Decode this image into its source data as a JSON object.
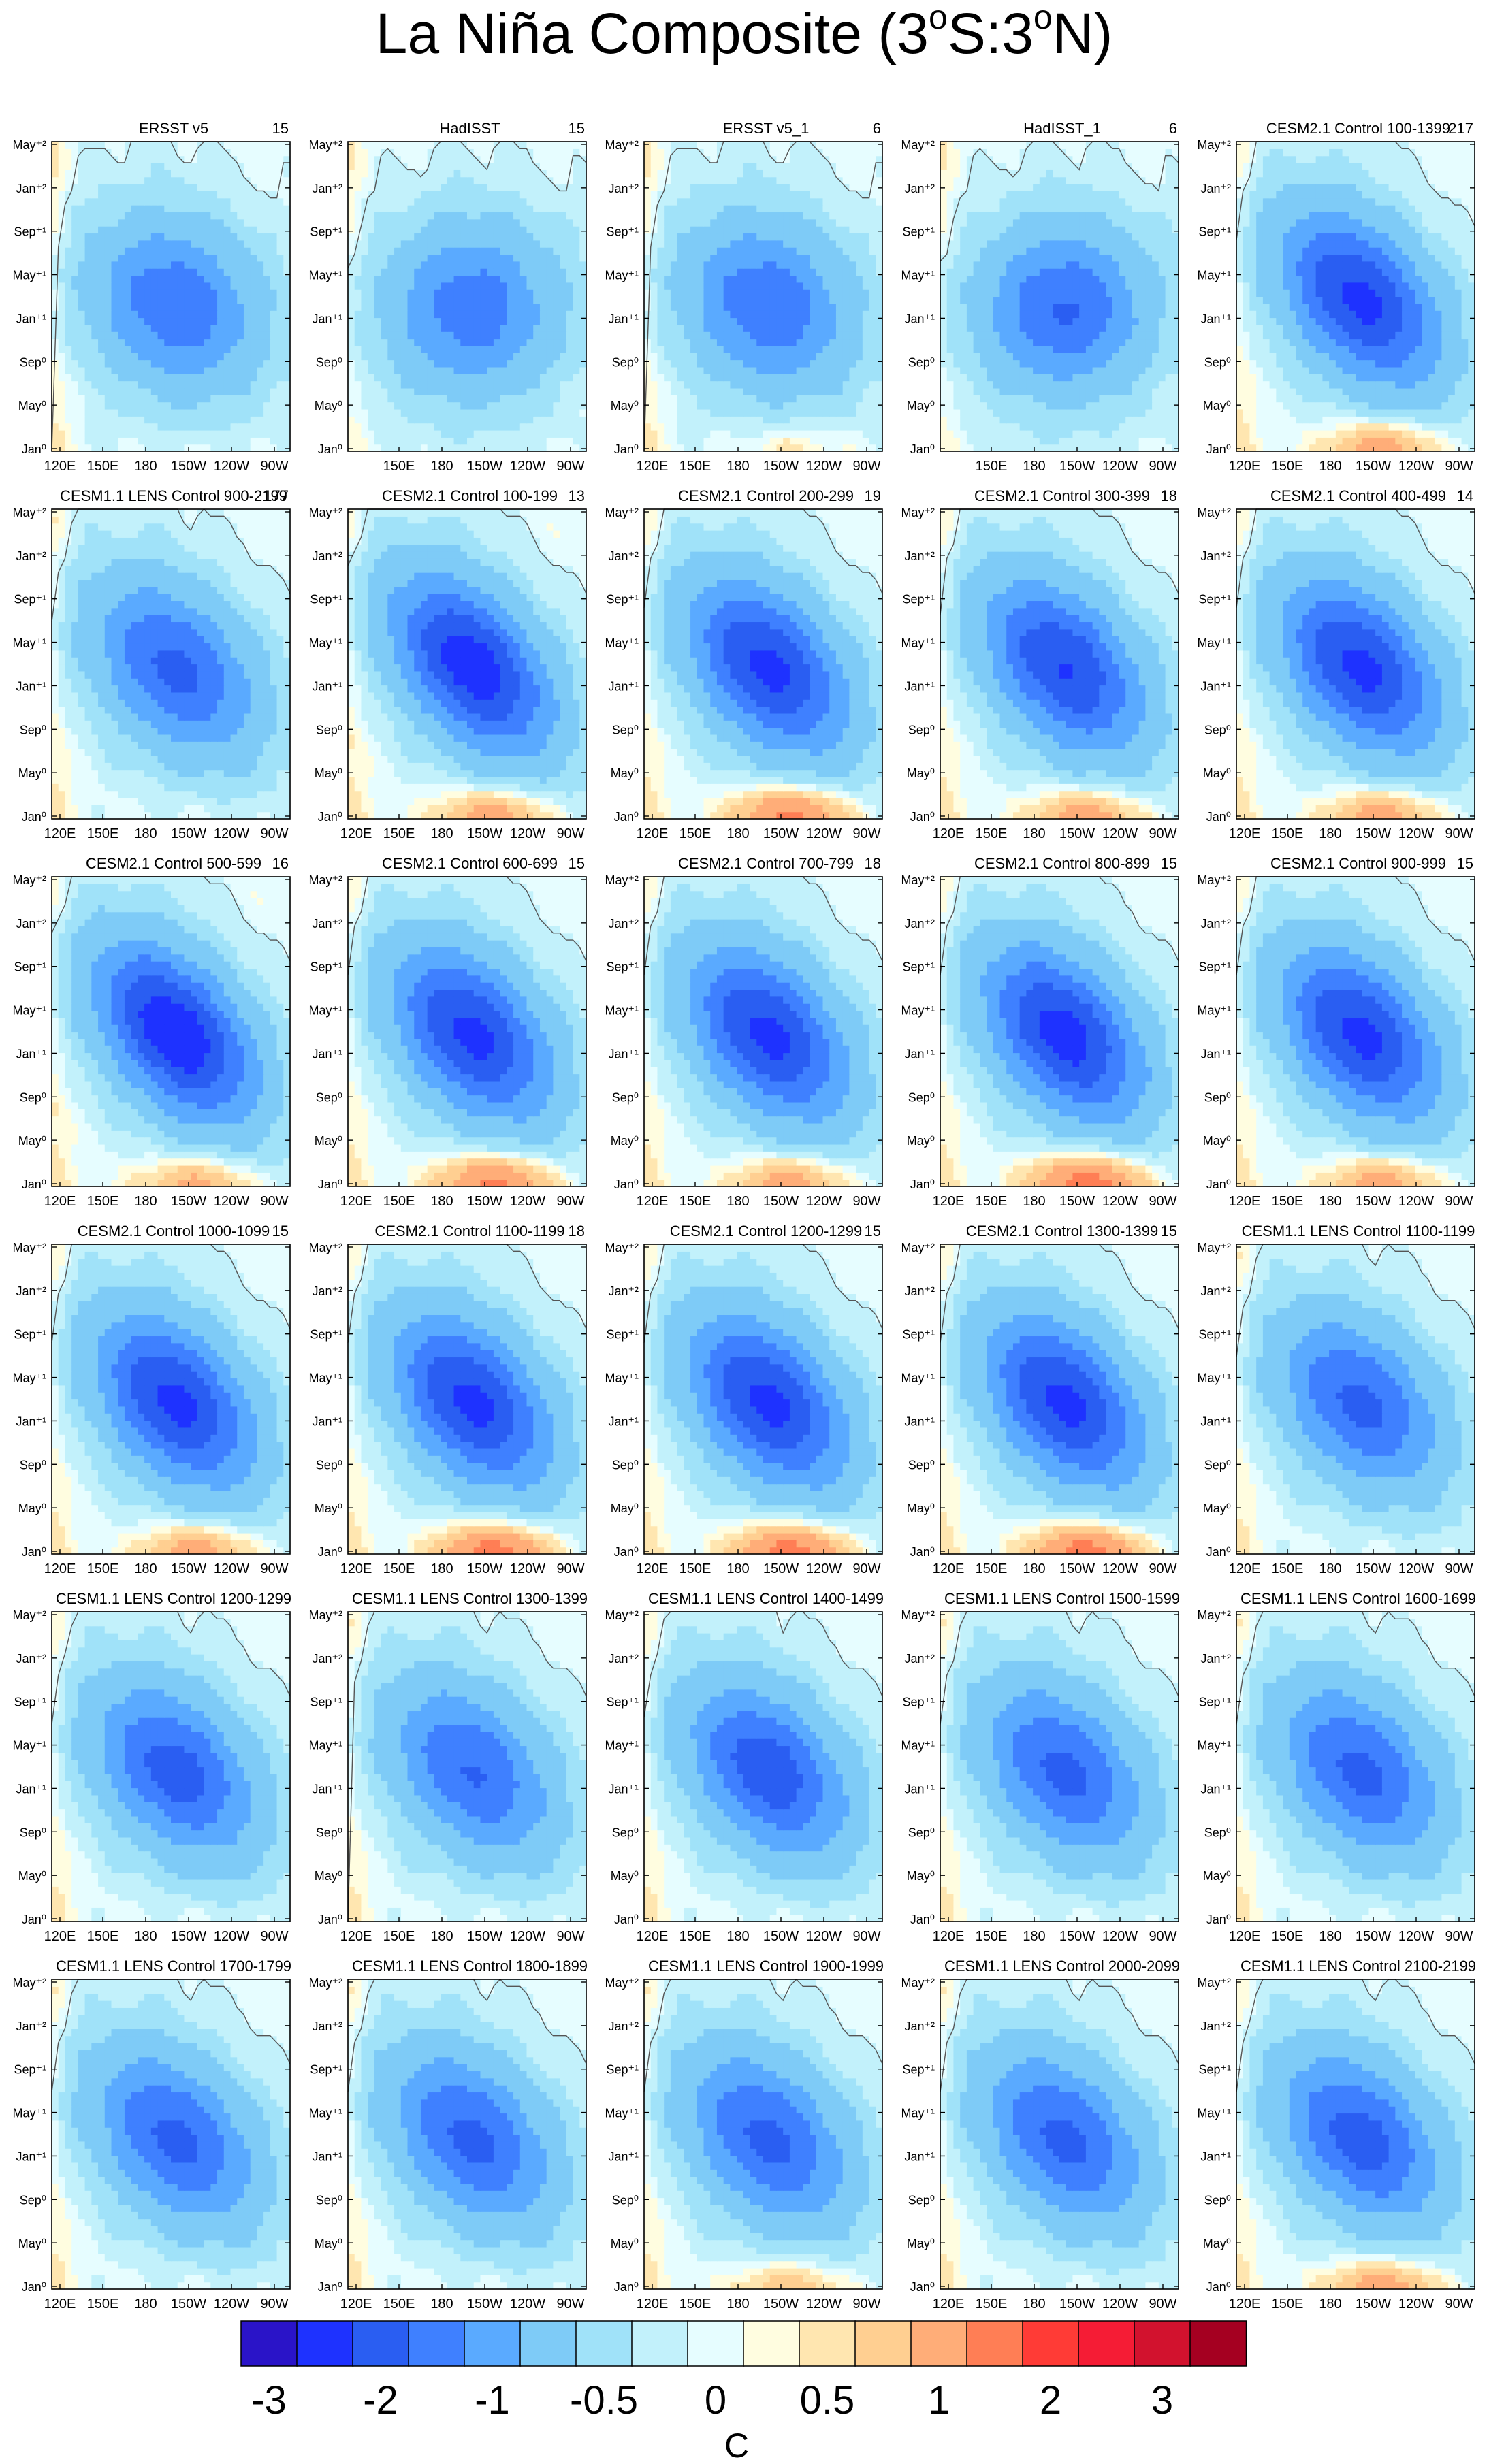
{
  "title": "La Niña Composite (3°S:3°N)",
  "title_parts": {
    "pre": "La Niña Composite (3",
    "sup1": "o",
    "mid": "S:3",
    "sup2": "o",
    "post": "N)"
  },
  "colors": {
    "levels": [
      "#2a14c8",
      "#1e32ff",
      "#2a5ef2",
      "#3f80ff",
      "#5aaaff",
      "#7ecbf7",
      "#a0e2f9",
      "#c2f1fb",
      "#e6fdff",
      "#fffde0",
      "#ffe6b0",
      "#ffcf91",
      "#ffad78",
      "#ff7e55",
      "#ff3b36",
      "#f51c35",
      "#d2122e",
      "#a50021"
    ],
    "contour": "#555555"
  },
  "colorbar": {
    "labels": [
      "-3",
      "-2",
      "-1",
      "-0.5",
      "0",
      "0.5",
      "1",
      "2",
      "3"
    ],
    "unit": "C"
  },
  "chart_data": {
    "type": "heatmap",
    "x_ticks": [
      "120E",
      "150E",
      "180",
      "150W",
      "120W",
      "90W"
    ],
    "y_ticks": [
      "Jan⁰",
      "May⁰",
      "Sep⁰",
      "Jan⁺¹",
      "May⁺¹",
      "Sep⁺¹",
      "Jan⁺²",
      "May⁺²"
    ],
    "panels": [
      {
        "name": "ERSST v5",
        "count": "15",
        "min": -1.6,
        "warm": 0.05,
        "tilt": 0.15,
        "ymax": 2.1,
        "has120E": true
      },
      {
        "name": "HadISST",
        "count": "15",
        "min": -1.5,
        "warm": 0.0,
        "tilt": 0.0,
        "ymax": 2.3,
        "has120E": false
      },
      {
        "name": "ERSST v5_1",
        "count": "6",
        "min": -1.6,
        "warm": 0.3,
        "tilt": 0.15,
        "ymax": 2.3,
        "has120E": true
      },
      {
        "name": "HadISST_1",
        "count": "6",
        "min": -1.7,
        "warm": 0.0,
        "tilt": 0.0,
        "ymax": 2.4,
        "has120E": false
      },
      {
        "name": "CESM2.1 Control 100-1399",
        "count": "217",
        "min": -2.3,
        "warm": 0.9,
        "tilt": 0.4,
        "ymax": 2.2,
        "has120E": true
      },
      {
        "name": "CESM1.1 LENS Control 900-2199",
        "count": "177",
        "min": -1.8,
        "warm": 0.1,
        "tilt": 0.35,
        "ymax": 2.0,
        "has120E": true
      },
      {
        "name": "CESM2.1 Control 100-199",
        "count": "13",
        "min": -2.5,
        "warm": 0.9,
        "tilt": 0.45,
        "ymax": 2.1,
        "has120E": true
      },
      {
        "name": "CESM2.1 Control 200-299",
        "count": "19",
        "min": -2.3,
        "warm": 1.3,
        "tilt": 0.4,
        "ymax": 2.1,
        "has120E": true
      },
      {
        "name": "CESM2.1 Control 300-399",
        "count": "18",
        "min": -2.2,
        "warm": 0.9,
        "tilt": 0.4,
        "ymax": 2.2,
        "has120E": true
      },
      {
        "name": "CESM2.1 Control 400-499",
        "count": "14",
        "min": -2.3,
        "warm": 0.9,
        "tilt": 0.4,
        "ymax": 2.2,
        "has120E": true
      },
      {
        "name": "CESM2.1 Control 500-599",
        "count": "16",
        "min": -2.6,
        "warm": 0.8,
        "tilt": 0.45,
        "ymax": 2.1,
        "has120E": true
      },
      {
        "name": "CESM2.1 Control 600-699",
        "count": "15",
        "min": -2.3,
        "warm": 1.3,
        "tilt": 0.4,
        "ymax": 2.1,
        "has120E": true
      },
      {
        "name": "CESM2.1 Control 700-799",
        "count": "18",
        "min": -2.3,
        "warm": 0.9,
        "tilt": 0.4,
        "ymax": 2.2,
        "has120E": true
      },
      {
        "name": "CESM2.1 Control 800-899",
        "count": "15",
        "min": -2.4,
        "warm": 1.5,
        "tilt": 0.4,
        "ymax": 2.1,
        "has120E": true
      },
      {
        "name": "CESM2.1 Control 900-999",
        "count": "15",
        "min": -2.3,
        "warm": 0.9,
        "tilt": 0.4,
        "ymax": 2.2,
        "has120E": true
      },
      {
        "name": "CESM2.1 Control 1000-1099",
        "count": "15",
        "min": -2.3,
        "warm": 0.9,
        "tilt": 0.4,
        "ymax": 2.1,
        "has120E": true
      },
      {
        "name": "CESM2.1 Control 1100-1199",
        "count": "18",
        "min": -2.3,
        "warm": 1.4,
        "tilt": 0.4,
        "ymax": 2.2,
        "has120E": true
      },
      {
        "name": "CESM2.1 Control 1200-1299",
        "count": "15",
        "min": -2.3,
        "warm": 1.4,
        "tilt": 0.4,
        "ymax": 2.2,
        "has120E": true
      },
      {
        "name": "CESM2.1 Control 1300-1399",
        "count": "15",
        "min": -2.3,
        "warm": 1.4,
        "tilt": 0.4,
        "ymax": 2.3,
        "has120E": true
      },
      {
        "name": "CESM1.1 LENS Control 1100-1199",
        "count": "",
        "min": -1.8,
        "warm": 0.1,
        "tilt": 0.35,
        "ymax": 2.0,
        "has120E": true
      },
      {
        "name": "CESM1.1 LENS Control 1200-1299",
        "count": "",
        "min": -1.9,
        "warm": 0.1,
        "tilt": 0.35,
        "ymax": 2.0,
        "has120E": true
      },
      {
        "name": "CESM1.1 LENS Control 1300-1399",
        "count": "",
        "min": -1.7,
        "warm": 0.1,
        "tilt": 0.35,
        "ymax": 2.0,
        "has120E": true
      },
      {
        "name": "CESM1.1 LENS Control 1400-1499",
        "count": "",
        "min": -2.0,
        "warm": 0.1,
        "tilt": 0.35,
        "ymax": 2.2,
        "has120E": true
      },
      {
        "name": "CESM1.1 LENS Control 1500-1599",
        "count": "",
        "min": -1.8,
        "warm": 0.1,
        "tilt": 0.35,
        "ymax": 2.0,
        "has120E": true
      },
      {
        "name": "CESM1.1 LENS Control 1600-1699",
        "count": "",
        "min": -1.8,
        "warm": 0.1,
        "tilt": 0.35,
        "ymax": 2.0,
        "has120E": true
      },
      {
        "name": "CESM1.1 LENS Control 1700-1799",
        "count": "",
        "min": -1.8,
        "warm": 0.1,
        "tilt": 0.35,
        "ymax": 2.0,
        "has120E": true
      },
      {
        "name": "CESM1.1 LENS Control 1800-1899",
        "count": "",
        "min": -1.8,
        "warm": 0.1,
        "tilt": 0.35,
        "ymax": 2.0,
        "has120E": true
      },
      {
        "name": "CESM1.1 LENS Control 1900-1999",
        "count": "",
        "min": -1.8,
        "warm": 0.6,
        "tilt": 0.35,
        "ymax": 2.0,
        "has120E": true
      },
      {
        "name": "CESM1.1 LENS Control 2000-2099",
        "count": "",
        "min": -1.8,
        "warm": 0.1,
        "tilt": 0.35,
        "ymax": 2.0,
        "has120E": true
      },
      {
        "name": "CESM1.1 LENS Control 2100-2199",
        "count": "",
        "min": -1.9,
        "warm": 0.9,
        "tilt": 0.35,
        "ymax": 2.0,
        "has120E": true
      }
    ]
  }
}
